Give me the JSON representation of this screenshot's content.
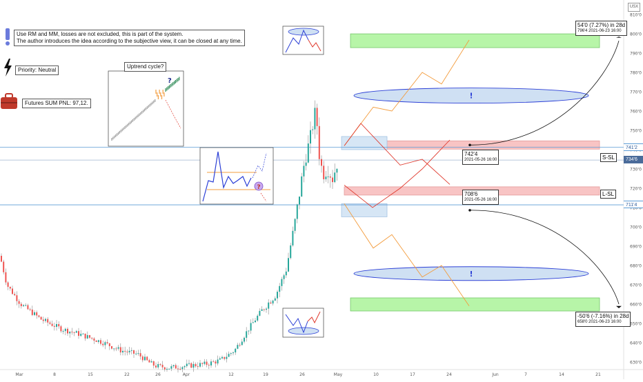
{
  "header": {
    "currency": "USX",
    "note_system": "Use RM and MM, losses are not excluded, this is part of the system.\nThe author introduces the idea according to the subjective view, it can be closed at any time.",
    "priority": "Priority: Neutral",
    "futures_pnl": "Futures SUM PNL: 97,12.",
    "uptrend_label": "Uptrend cycle?"
  },
  "price_labels": {
    "target_up_main": "54'0 (7.27%) in 28d",
    "target_up_sub": "796'4    2021-06-23  16:00",
    "sl_short_price": "742'4",
    "sl_short_time": "2021-05-26 16:00",
    "sl_long_price": "708'6",
    "sl_long_time": "2021-05-26 16:00",
    "target_down_main": "-50'6 (-7.16%) in 28d",
    "target_down_sub": "658'0    2021-06-23  16:00",
    "short_sl": "S-SL",
    "long_sl": "L-SL",
    "exclaim": "!"
  },
  "axis_tags": {
    "upper_level": "741'2",
    "last_price": "734'6",
    "lower_level": "711'4"
  },
  "colors": {
    "up_candle": "#26a69a",
    "down_candle": "#ef5350",
    "green_zone": "#b7f5a8",
    "red_zone": "#f8c4c4",
    "blue_zone": "#d6e6f5",
    "ellipse": "#cfe0f3",
    "level_line": "#5b9bd5",
    "last_price_tag": "#4a6b9a"
  },
  "chart_data": {
    "type": "candlestick",
    "ylim": [
      6260,
      8120
    ],
    "y_ticks": [
      "630'0",
      "640'0",
      "650'0",
      "660'0",
      "670'0",
      "680'0",
      "690'0",
      "700'0",
      "710'0",
      "720'0",
      "730'0",
      "740'0",
      "750'0",
      "760'0",
      "770'0",
      "780'0",
      "790'0",
      "800'0",
      "810'0"
    ],
    "x_ticks": [
      "Mar",
      "8",
      "15",
      "22",
      "26",
      "Apr",
      "12",
      "19",
      "26",
      "May",
      "10",
      "17",
      "24",
      "Jun",
      "7",
      "14",
      "21"
    ],
    "key_levels": {
      "upper": 7412,
      "last": 7346,
      "lower": 7114
    },
    "candles_summary": {
      "start_price": 6850,
      "low_price": 6280,
      "low_region": "Apr",
      "peak_price": 7690,
      "peak_region": "26",
      "end_price": 7346
    },
    "projections": {
      "up_target": 7964,
      "down_target": 6580,
      "short_stop": 7424,
      "long_stop": 7086
    }
  }
}
